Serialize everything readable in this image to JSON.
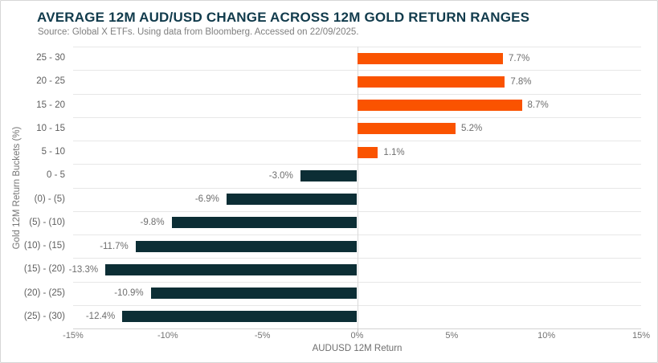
{
  "header": {
    "title": "AVERAGE 12M AUD/USD CHANGE ACROSS 12M GOLD RETURN RANGES",
    "source": "Source: Global X ETFs. Using data from Bloomberg. Accessed on 22/09/2025."
  },
  "chart_data": {
    "type": "bar",
    "orientation": "horizontal",
    "title": "AVERAGE 12M AUD/USD CHANGE ACROSS 12M GOLD RETURN RANGES",
    "subtitle": "Source: Global X ETFs. Using data from Bloomberg. Accessed on 22/09/2025.",
    "categories": [
      "25 - 30",
      "20 - 25",
      "15 - 20",
      "10 - 15",
      "5 - 10",
      "0 - 5",
      "(0) - (5)",
      "(5) - (10)",
      "(10) - (15)",
      "(15) - (20)",
      "(20) - (25)",
      "(25) - (30)"
    ],
    "values": [
      7.7,
      7.8,
      8.7,
      5.2,
      1.1,
      -3.0,
      -6.9,
      -9.8,
      -11.7,
      -13.3,
      -10.9,
      -12.4
    ],
    "value_labels": [
      "7.7%",
      "7.8%",
      "8.7%",
      "5.2%",
      "1.1%",
      "-3.0%",
      "-6.9%",
      "-9.8%",
      "-11.7%",
      "-13.3%",
      "-10.9%",
      "-12.4%"
    ],
    "xlabel": "AUDUSD 12M Return",
    "ylabel": "Gold 12M Return Buckets (%)",
    "xlim": [
      -15,
      15
    ],
    "x_tick_values": [
      -15,
      -10,
      -5,
      0,
      5,
      10,
      15
    ],
    "x_tick_labels": [
      "-15%",
      "-10%",
      "-5%",
      "0%",
      "5%",
      "10%",
      "15%"
    ],
    "grid": "horizontal category separators and zero baseline only",
    "legend": "none",
    "colors": {
      "positive_bar": "#fa5300",
      "negative_bar": "#0c2e35",
      "title_text": "#113b4c",
      "axis_text": "#737373",
      "gridline": "#e7e7e7"
    }
  }
}
